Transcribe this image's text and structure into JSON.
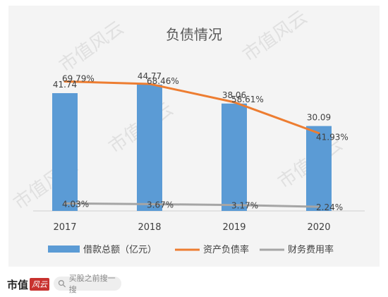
{
  "chart_data": {
    "type": "bar+line",
    "title": "负债情况",
    "categories": [
      "2017",
      "2018",
      "2019",
      "2020"
    ],
    "bar_series": {
      "name": "借款总额（亿元）",
      "values": [
        41.74,
        44.77,
        38.06,
        30.09
      ],
      "value_labels": [
        "41.74",
        "44.77",
        "38.06",
        "30.09"
      ],
      "color": "#5b9bd5"
    },
    "line_series": [
      {
        "name": "资产负债率",
        "values": [
          69.79,
          68.46,
          58.61,
          41.93
        ],
        "value_labels": [
          "69.79%",
          "68.46%",
          "58.61%",
          "41.93%"
        ],
        "color": "#ed7d31"
      },
      {
        "name": "财务费用率",
        "values": [
          4.03,
          3.67,
          3.17,
          2.24
        ],
        "value_labels": [
          "4.03%",
          "3.67%",
          "3.17%",
          "2.24%"
        ],
        "color": "#a5a5a5"
      }
    ],
    "bar_ylim": [
      0,
      55
    ],
    "line_ylim": [
      0,
      85
    ],
    "legend_position": "bottom",
    "grid": false
  },
  "watermark": {
    "text": "市值风云"
  },
  "footer": {
    "logo_text": "市值",
    "logo_stamp": "风云",
    "search_placeholder": "买股之前搜一搜"
  }
}
